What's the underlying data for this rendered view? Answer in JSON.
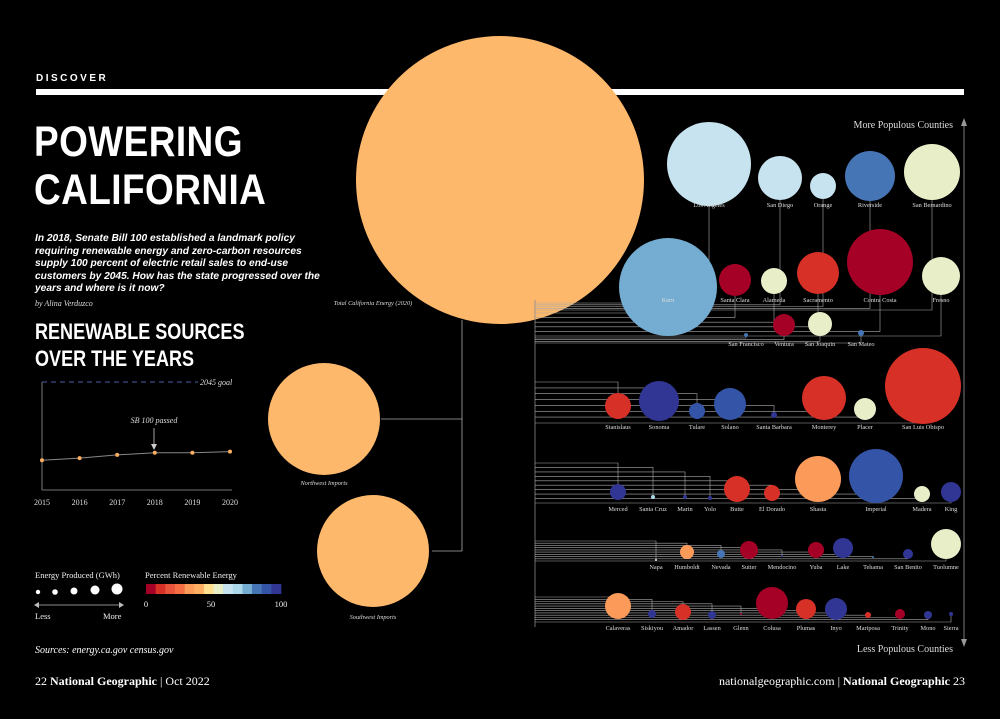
{
  "header": {
    "kicker": "DISCOVER"
  },
  "title": "POWERING CALIFORNIA",
  "intro": "In 2018, Senate Bill 100 established a landmark policy requiring renewable energy and zero-carbon resources supply 100 percent of electric retail sales to end-use customers by 2045. How has the state progressed over the years and where is it now?",
  "byline": "by Alina Verduzco",
  "subhead": "RENEWABLE SOURCES OVER THE YEARS",
  "chart_data": {
    "type": "line",
    "x": [
      2015,
      2016,
      2017,
      2018,
      2019,
      2020
    ],
    "y": [
      27.5,
      29.5,
      32.5,
      34.5,
      34.5,
      35.5
    ],
    "xlim": [
      2015,
      2020
    ],
    "ylim": [
      0,
      100
    ],
    "goal_value": 100,
    "annotations": [
      {
        "x": 2018,
        "text": "SB 100 passed"
      },
      {
        "text": "2045 goal"
      }
    ]
  },
  "sources_chart": {
    "total": {
      "label": "Total California Energy (2020)",
      "color": "#fdb86b"
    },
    "imports": [
      {
        "label": "Northwest Imports",
        "color": "#fdb86b"
      },
      {
        "label": "Southwest Imports",
        "color": "#fdb86b"
      }
    ]
  },
  "legend": {
    "size_title": "Energy Produced (GWh)",
    "size_min": "Less",
    "size_max": "More",
    "color_title": "Percent Renewable Energy",
    "color_ticks": [
      "0",
      "50",
      "100"
    ],
    "color_scale": [
      "#a50026",
      "#d73027",
      "#e8543b",
      "#f46d43",
      "#fb9a59",
      "#fdae61",
      "#fee090",
      "#e8efc8",
      "#c6e3ef",
      "#abd9e9",
      "#74add1",
      "#4575b4",
      "#3454a8",
      "#313695"
    ]
  },
  "counties": {
    "axis_top": "More Populous Counties",
    "axis_bottom": "Less Populous Counties",
    "rows": [
      {
        "items": [
          {
            "name": "Los Angeles",
            "pct": 60
          },
          {
            "name": "San Diego",
            "pct": 62
          },
          {
            "name": "Orange",
            "pct": 63
          },
          {
            "name": "Riverside",
            "pct": 82
          },
          {
            "name": "San Bernardino",
            "pct": 57
          }
        ]
      },
      {
        "items": [
          {
            "name": "Kern",
            "pct": 72
          },
          {
            "name": "Santa Clara",
            "pct": 2
          },
          {
            "name": "Alameda",
            "pct": 55
          },
          {
            "name": "Sacramento",
            "pct": 12
          },
          {
            "name": "Contra Costa",
            "pct": 2
          },
          {
            "name": "Fresno",
            "pct": 55
          }
        ]
      },
      {
        "items": [
          {
            "name": "San Francisco",
            "pct": 80
          },
          {
            "name": "Ventura",
            "pct": 2
          },
          {
            "name": "San Joaquin",
            "pct": 57
          },
          {
            "name": "San Mateo",
            "pct": 80
          }
        ]
      },
      {
        "items": [
          {
            "name": "Stanislaus",
            "pct": 10
          },
          {
            "name": "Sonoma",
            "pct": 97
          },
          {
            "name": "Tulare",
            "pct": 90
          },
          {
            "name": "Solano",
            "pct": 90
          },
          {
            "name": "Santa Barbara",
            "pct": 95
          },
          {
            "name": "Monterey",
            "pct": 12
          },
          {
            "name": "Placer",
            "pct": 57
          },
          {
            "name": "San Luis Obispo",
            "pct": 12
          }
        ]
      },
      {
        "items": [
          {
            "name": "Merced",
            "pct": 95
          },
          {
            "name": "Santa Cruz",
            "pct": 70
          },
          {
            "name": "Marin",
            "pct": 95
          },
          {
            "name": "Yolo",
            "pct": 95
          },
          {
            "name": "Butte",
            "pct": 12
          },
          {
            "name": "El Dorado",
            "pct": 10
          },
          {
            "name": "Shasta",
            "pct": 35
          },
          {
            "name": "Imperial",
            "pct": 90
          },
          {
            "name": "Madera",
            "pct": 57
          },
          {
            "name": "King",
            "pct": 95
          }
        ]
      },
      {
        "items": [
          {
            "name": "Napa",
            "pct": 55
          },
          {
            "name": "Humboldt",
            "pct": 35
          },
          {
            "name": "Nevada",
            "pct": 82
          },
          {
            "name": "Sutter",
            "pct": 2
          },
          {
            "name": "Mendocino",
            "pct": 95
          },
          {
            "name": "Yuba",
            "pct": 2
          },
          {
            "name": "Lake",
            "pct": 95
          },
          {
            "name": "Tehama",
            "pct": 82
          },
          {
            "name": "San Benito",
            "pct": 95
          },
          {
            "name": "Tuolumne",
            "pct": 57
          }
        ]
      },
      {
        "items": [
          {
            "name": "Calaveras",
            "pct": 35
          },
          {
            "name": "Siskiyou",
            "pct": 95
          },
          {
            "name": "Amador",
            "pct": 10
          },
          {
            "name": "Lassen",
            "pct": 95
          },
          {
            "name": "Glenn",
            "pct": 2
          },
          {
            "name": "Colusa",
            "pct": 2
          },
          {
            "name": "Plumas",
            "pct": 12
          },
          {
            "name": "Inyo",
            "pct": 95
          },
          {
            "name": "Mariposa",
            "pct": 10
          },
          {
            "name": "Trinity",
            "pct": 2
          },
          {
            "name": "Mono",
            "pct": 95
          },
          {
            "name": "Sierra",
            "pct": 95
          }
        ]
      }
    ]
  },
  "sources_text": "Sources: energy.ca.gov census.gov",
  "footer": {
    "left_page": "22",
    "left_brand": "National Geographic",
    "left_date": "Oct 2022",
    "right_url": "nationalgeographic.com",
    "right_brand": "National Geographic",
    "right_page": "23"
  }
}
